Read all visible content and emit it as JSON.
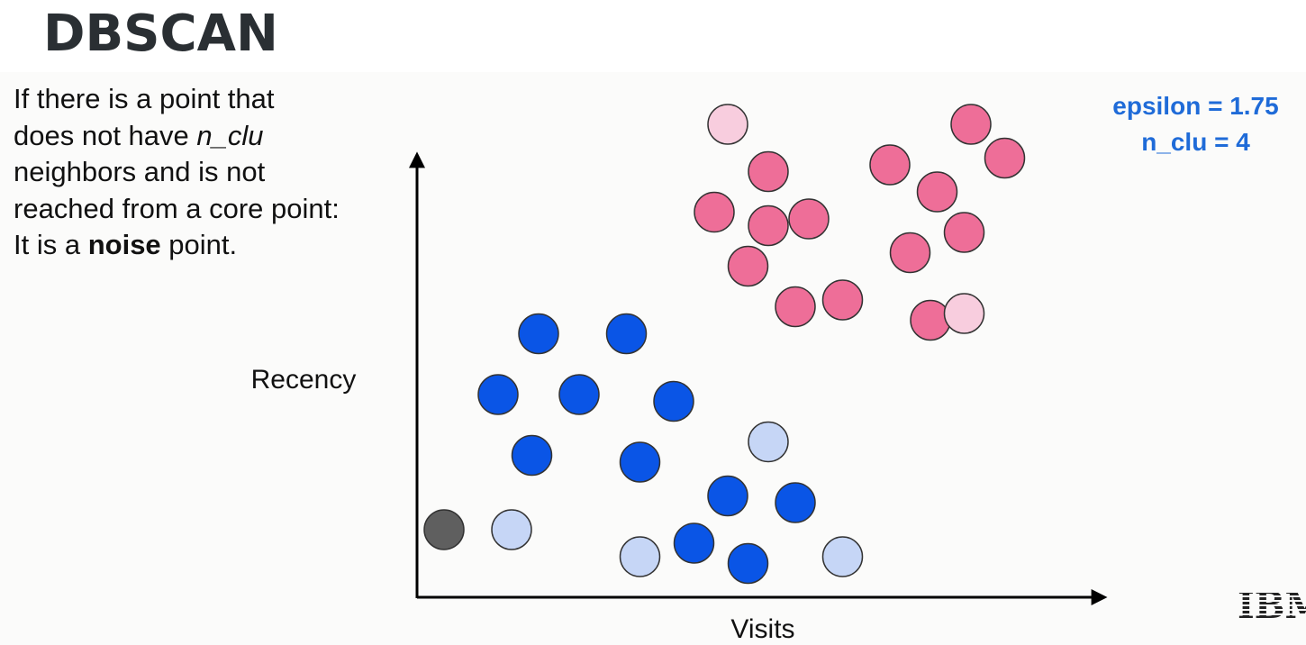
{
  "slide": {
    "title": "DBSCAN",
    "description": {
      "line1": "If there is a point that",
      "line2_a": "does not have ",
      "line2_b": "n_clu",
      "line3": "neighbors and is not",
      "line4": "reached from a core point:",
      "line5_a": "It is a ",
      "line5_b": "noise",
      "line5_c": " point."
    },
    "params": {
      "epsilon": "epsilon = 1.75",
      "n_clu": "n_clu = 4"
    },
    "logo": "IBM"
  },
  "colors": {
    "blue_core": "#0a55e6",
    "blue_border": "#1d5ae0",
    "pink_core": "#ee6e98",
    "light_blue_border": "#c6d6f6",
    "light_pink_border": "#f8cdde",
    "noise": "#5f5f5f",
    "param_text": "#1f6bd8",
    "title_text": "#2a2f33"
  },
  "chart_data": {
    "type": "scatter",
    "title": "",
    "xlabel": "Visits",
    "ylabel": "Recency",
    "xlim": [
      0,
      10
    ],
    "ylim": [
      0,
      7
    ],
    "grid": false,
    "legend": "none",
    "series": [
      {
        "kind": "cluster 1 core points",
        "color": "#0a55e6",
        "points": [
          [
            1.8,
            3.9
          ],
          [
            3.1,
            3.9
          ],
          [
            1.2,
            3.0
          ],
          [
            2.4,
            3.0
          ],
          [
            3.8,
            2.9
          ],
          [
            1.7,
            2.1
          ],
          [
            3.3,
            2.0
          ],
          [
            4.6,
            1.5
          ],
          [
            5.6,
            1.4
          ],
          [
            4.1,
            0.8
          ],
          [
            4.9,
            0.5
          ]
        ]
      },
      {
        "kind": "cluster 1 border points",
        "color": "#c6d6f6",
        "points": [
          [
            1.4,
            1.0
          ],
          [
            3.3,
            0.6
          ],
          [
            5.2,
            2.3
          ],
          [
            6.3,
            0.6
          ]
        ]
      },
      {
        "kind": "cluster 2 core points",
        "color": "#ee6e98",
        "points": [
          [
            5.2,
            6.3
          ],
          [
            4.4,
            5.7
          ],
          [
            5.2,
            5.5
          ],
          [
            5.8,
            5.6
          ],
          [
            4.9,
            4.9
          ],
          [
            5.6,
            4.3
          ],
          [
            6.3,
            4.4
          ],
          [
            7.0,
            6.4
          ],
          [
            7.3,
            5.1
          ],
          [
            7.7,
            6.0
          ],
          [
            8.2,
            7.0
          ],
          [
            8.7,
            6.5
          ],
          [
            8.1,
            5.4
          ],
          [
            7.6,
            4.1
          ]
        ]
      },
      {
        "kind": "cluster 2 border points",
        "color": "#f8cdde",
        "points": [
          [
            4.6,
            7.0
          ],
          [
            8.1,
            4.2
          ]
        ]
      },
      {
        "kind": "noise point",
        "color": "#5f5f5f",
        "points": [
          [
            0.4,
            1.0
          ]
        ]
      }
    ]
  }
}
